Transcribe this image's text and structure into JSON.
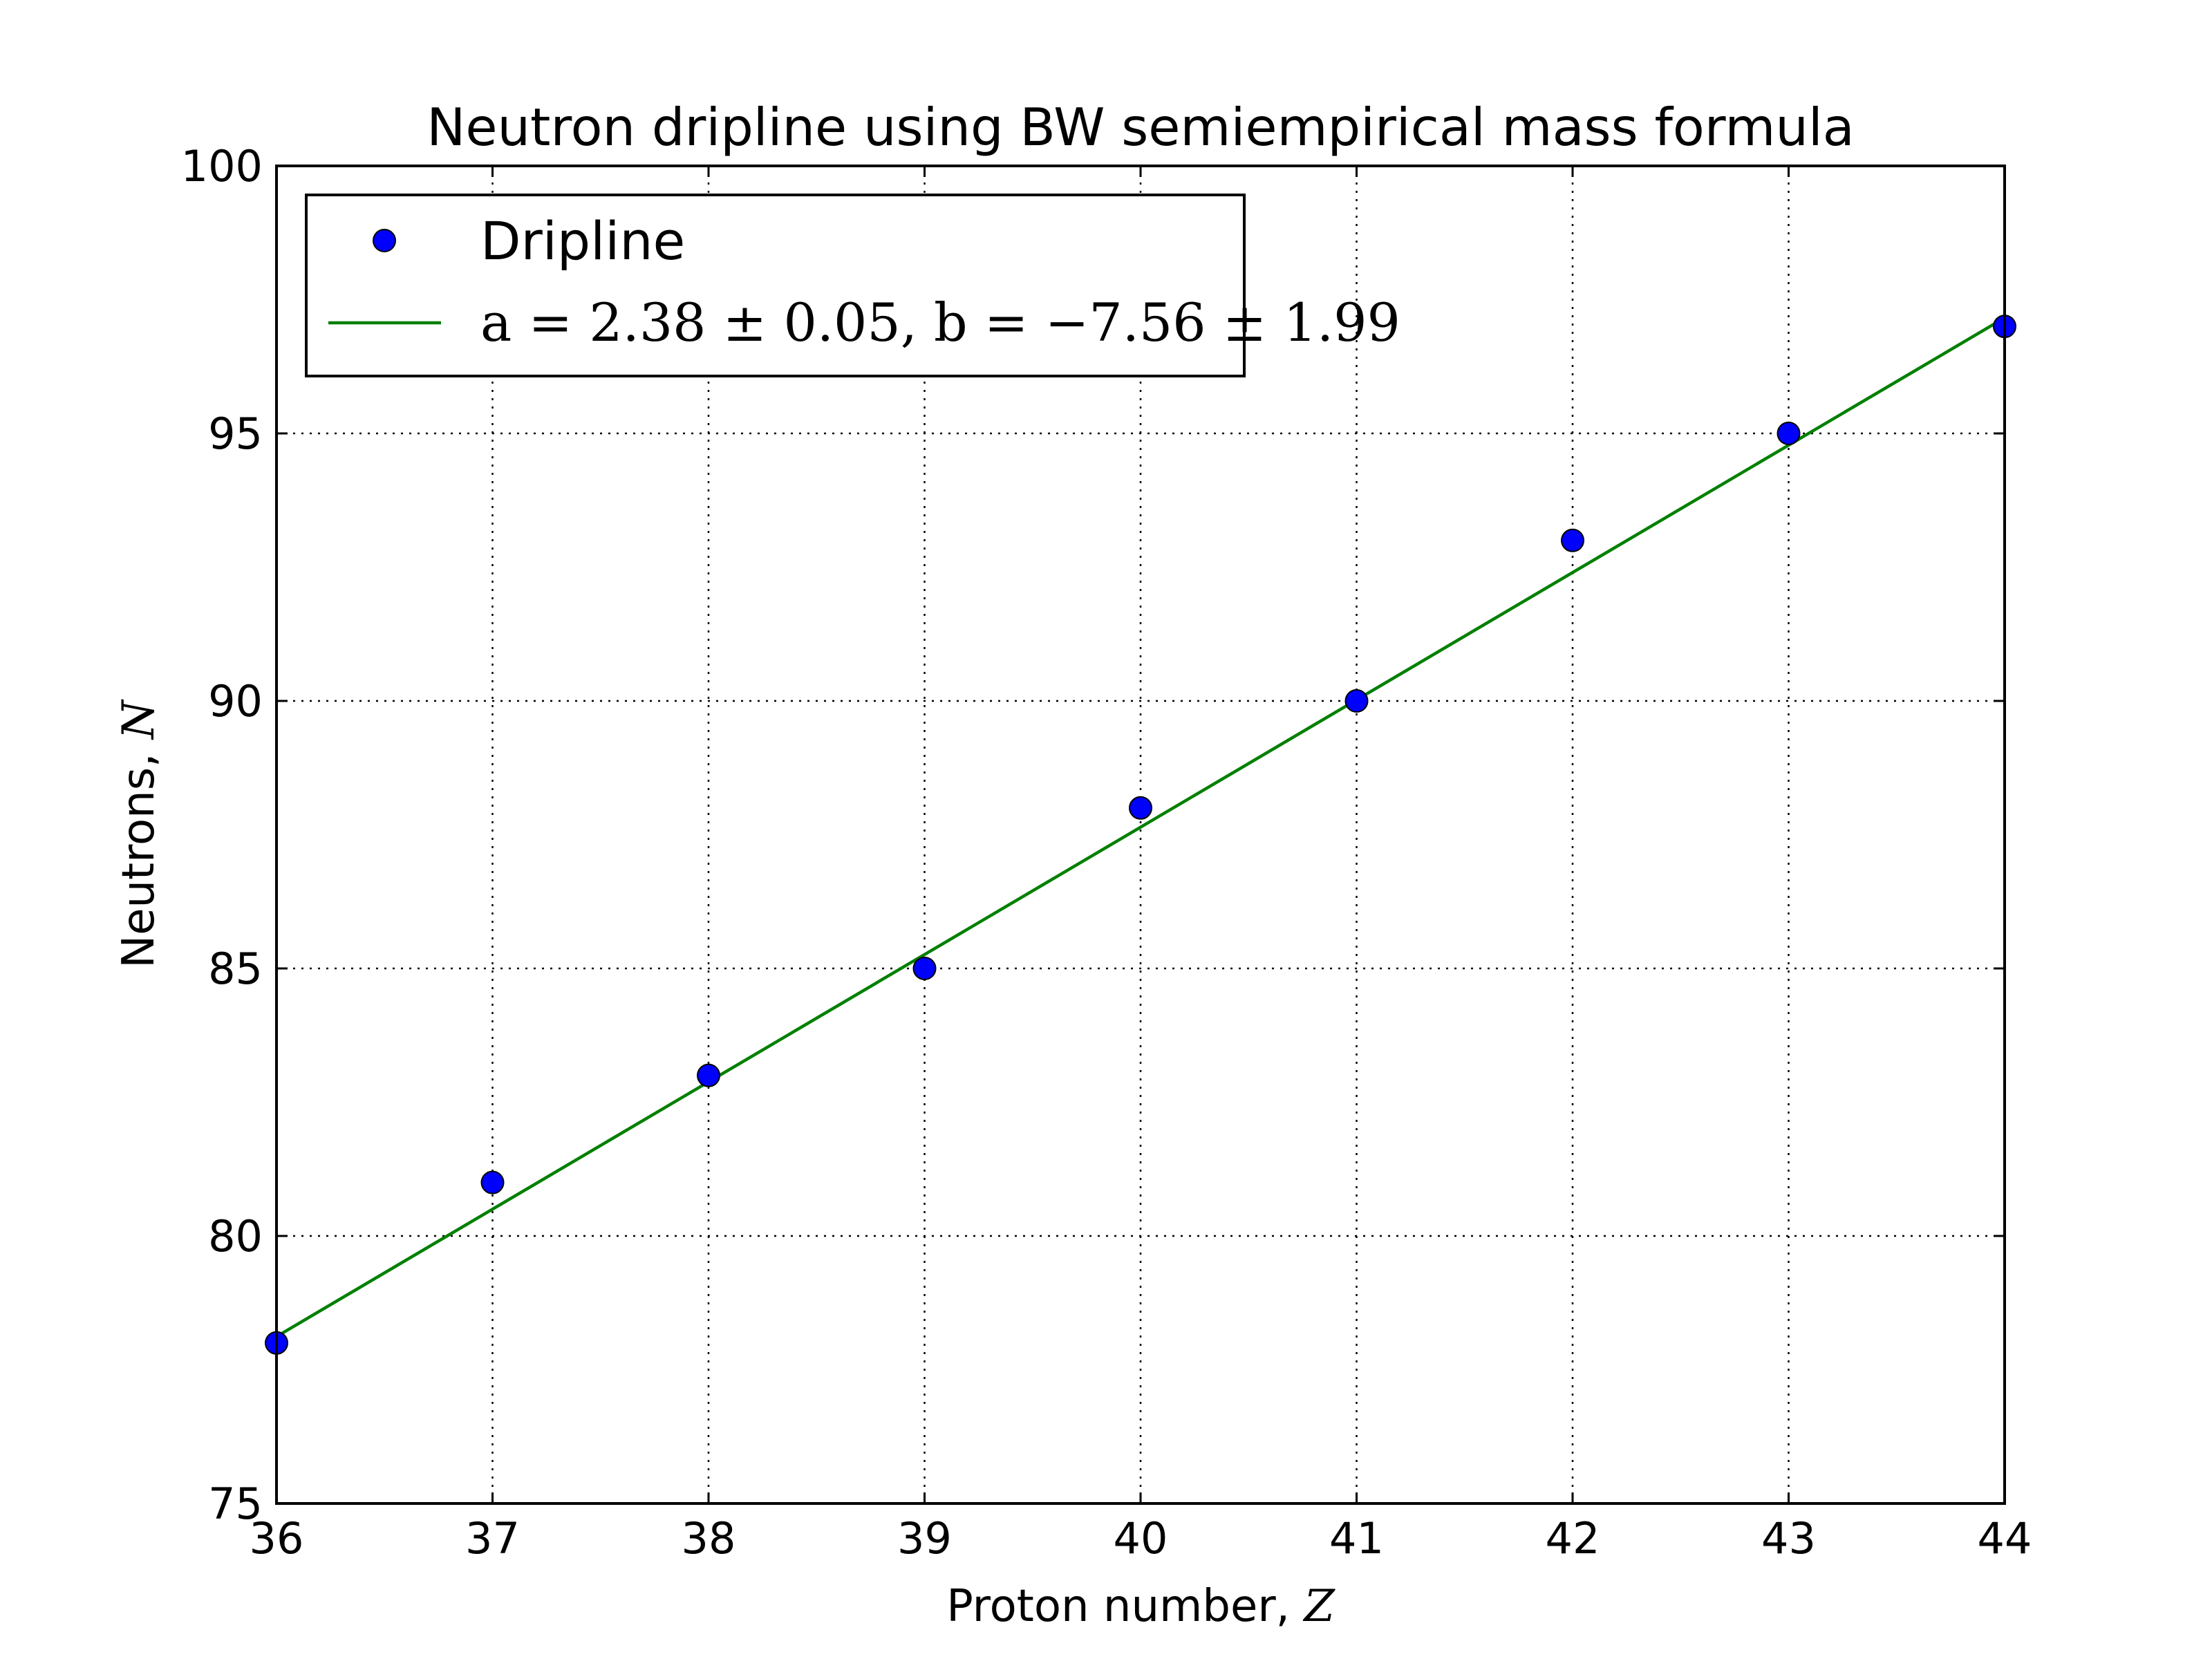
{
  "chart_data": {
    "type": "scatter",
    "title": "Neutron dripline using BW semiempirical mass formula",
    "xlabel": "Proton number, ",
    "xlabel_math": "Z",
    "ylabel": "Neutrons, ",
    "ylabel_math": "N",
    "xlim": [
      36,
      44
    ],
    "ylim": [
      75,
      100
    ],
    "xticks": [
      36,
      37,
      38,
      39,
      40,
      41,
      42,
      43,
      44
    ],
    "yticks": [
      75,
      80,
      85,
      90,
      95,
      100
    ],
    "grid": true,
    "legend_position": "top-left",
    "series": [
      {
        "name": "Dripline",
        "kind": "points",
        "color": "#0000ff",
        "x": [
          36,
          37,
          38,
          39,
          40,
          41,
          42,
          43,
          44
        ],
        "y": [
          78,
          81,
          83,
          85,
          88,
          90,
          93,
          95,
          97
        ]
      },
      {
        "name": "a = 2.38 ± 0.05, b = −7.56 ± 1.99",
        "kind": "line",
        "color": "#008000",
        "slope": 2.38,
        "intercept": -7.56
      }
    ]
  }
}
